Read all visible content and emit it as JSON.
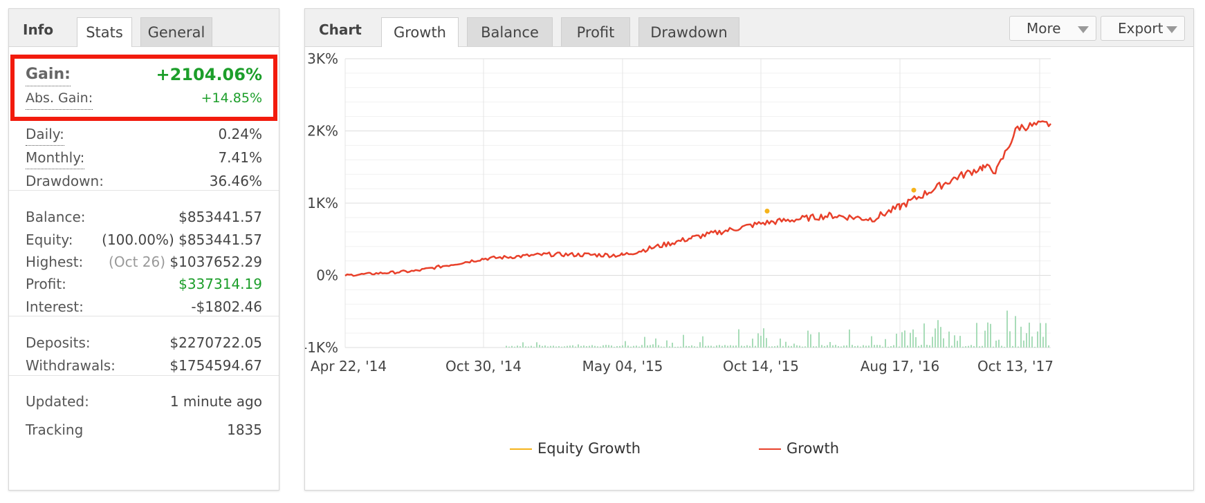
{
  "info": {
    "title": "Info",
    "tabs": [
      "Stats",
      "General"
    ],
    "gain_label": "Gain:",
    "gain_value": "+2104.06%",
    "abs_gain_label": "Abs. Gain:",
    "abs_gain_value": "+14.85%",
    "daily_label": "Daily:",
    "daily_value": "0.24%",
    "monthly_label": "Monthly:",
    "monthly_value": "7.41%",
    "drawdown_label": "Drawdown:",
    "drawdown_value": "36.46%",
    "balance_label": "Balance:",
    "balance_value": "$853441.57",
    "equity_label": "Equity:",
    "equity_pct": "(100.00%)",
    "equity_value": "$853441.57",
    "highest_label": "Highest:",
    "highest_date": "(Oct 26)",
    "highest_value": "$1037652.29",
    "profit_label": "Profit:",
    "profit_value": "$337314.19",
    "interest_label": "Interest:",
    "interest_value": "-$1802.46",
    "deposits_label": "Deposits:",
    "deposits_value": "$2270722.05",
    "withdrawals_label": "Withdrawals:",
    "withdrawals_value": "$1754594.67",
    "updated_label": "Updated:",
    "updated_value": "1 minute ago",
    "tracking_label": "Tracking",
    "tracking_value": "1835"
  },
  "chart_panel": {
    "title": "Chart",
    "tabs": [
      "Growth",
      "Balance",
      "Profit",
      "Drawdown"
    ],
    "more_label": "More",
    "export_label": "Export"
  },
  "colors": {
    "growth": "#e8402a",
    "equity": "#f5b31a",
    "volume": "#a8dcb8",
    "positive": "#1c9e2a",
    "highlight": "#f21b0d"
  },
  "chart_data": {
    "type": "line",
    "x_tick_labels": [
      "Apr 22, '14",
      "Oct 30, '14",
      "May 04, '15",
      "Oct 14, '15",
      "Aug 17, '16",
      "Oct 13, '17"
    ],
    "y_tick_labels": [
      "3K%",
      "2K%",
      "1K%",
      "0%",
      "-1K%"
    ],
    "ylim": [
      -1000,
      3000
    ],
    "grid": true,
    "legend_position": "bottom",
    "x_positions_note": "",
    "series": [
      {
        "name": "Equity Growth",
        "color": "#f5b31a",
        "x": [
          "Oct 14, '15",
          "Aug 17, '16"
        ],
        "y": [
          890,
          1180
        ]
      },
      {
        "name": "Growth",
        "color": "#e8402a",
        "x": [
          "Apr 22, '14",
          "Jul 2014",
          "Oct 30, '14",
          "Jan 2015",
          "May 04, '15",
          "Jul 2015",
          "Oct 14, '15",
          "Jan 2016",
          "Apr 2016",
          "Aug 17, '16",
          "Nov 2016",
          "Feb 2017",
          "May 2017",
          "Aug 2017",
          "Oct 13, '17"
        ],
        "y": [
          0,
          60,
          230,
          290,
          280,
          520,
          720,
          830,
          780,
          950,
          1350,
          1500,
          1450,
          2050,
          2100
        ]
      }
    ]
  }
}
